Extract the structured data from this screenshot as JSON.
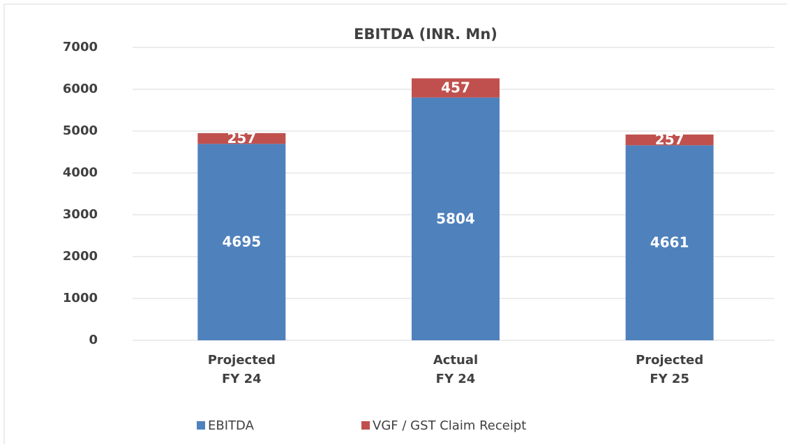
{
  "chart_data": {
    "type": "stacked_bar",
    "title": "EBITDA (INR. Mn)",
    "categories": [
      "Projected\nFY 24",
      "Actual\nFY 24",
      "Projected\nFY 25"
    ],
    "series": [
      {
        "name": "EBITDA",
        "color": "#4f81bd",
        "values": [
          4695,
          5804,
          4661
        ]
      },
      {
        "name": "VGF / GST Claim Receipt",
        "color": "#c0504d",
        "values": [
          257,
          457,
          257
        ]
      }
    ],
    "ylim": [
      0,
      7000
    ],
    "yticks": [
      0,
      1000,
      2000,
      3000,
      4000,
      5000,
      6000,
      7000
    ],
    "grid": true,
    "legend": "bottom"
  }
}
